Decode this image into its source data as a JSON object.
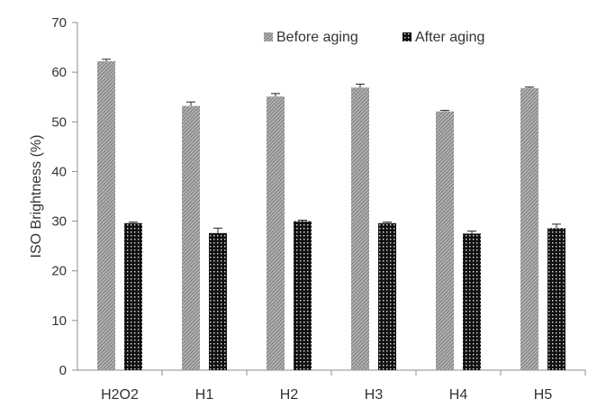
{
  "chart_data": {
    "type": "bar",
    "ylabel": "ISO Brightness (%)",
    "xlabel": "",
    "ylim": [
      0,
      70
    ],
    "yticks": [
      0,
      10,
      20,
      30,
      40,
      50,
      60,
      70
    ],
    "categories": [
      "H2O2",
      "H1",
      "H2",
      "H3",
      "H4",
      "H5"
    ],
    "series": [
      {
        "name": "Before aging",
        "values": [
          62.2,
          53.2,
          55.1,
          56.9,
          52.1,
          56.8
        ],
        "errors": [
          0.4,
          0.8,
          0.6,
          0.7,
          0.2,
          0.2
        ],
        "pattern": "diagonal-hatch-grey"
      },
      {
        "name": "After aging",
        "values": [
          29.6,
          27.6,
          30.0,
          29.6,
          27.5,
          28.6
        ],
        "errors": [
          0.2,
          1.0,
          0.2,
          0.2,
          0.5,
          0.8
        ],
        "pattern": "dotted-black"
      }
    ],
    "legend_position": "top",
    "grid": false
  }
}
